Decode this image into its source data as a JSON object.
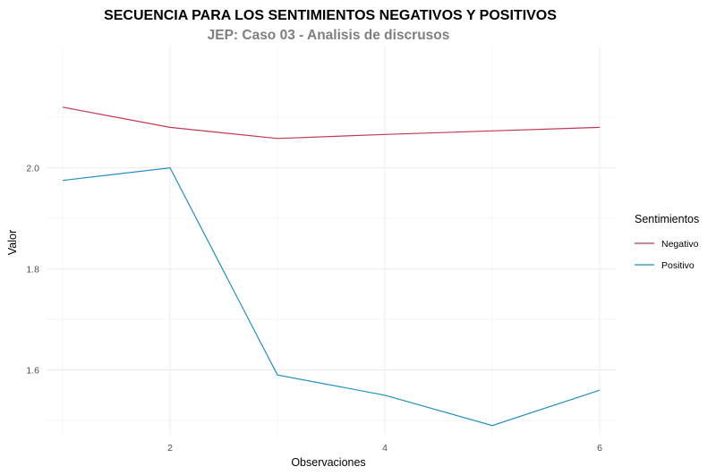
{
  "chart_data": {
    "type": "line",
    "title": "SECUENCIA PARA LOS SENTIMIENTOS NEGATIVOS Y POSITIVOS",
    "subtitle": "JEP: Caso 03 - Analisis de discrusos",
    "xlabel": "Observaciones",
    "ylabel": "Valor",
    "x": [
      1,
      2,
      3,
      4,
      5,
      6
    ],
    "xlim": [
      0.85,
      6.15
    ],
    "ylim": [
      1.47,
      2.24
    ],
    "xticks": [
      2,
      4,
      6
    ],
    "yticks": [
      1.6,
      1.8,
      2.0
    ],
    "ytick_labels": [
      "1.6",
      "1.8",
      "2.0"
    ],
    "xtick_labels": [
      "2",
      "4",
      "6"
    ],
    "grid": true,
    "legend": {
      "title": "Sentimientos",
      "placement": "right"
    },
    "series": [
      {
        "name": "Negativo",
        "color": "#c4384f",
        "values": [
          2.12,
          2.08,
          2.058,
          2.066,
          2.073,
          2.08
        ]
      },
      {
        "name": "Positivo",
        "color": "#1f8fc4",
        "values": [
          1.975,
          2.0,
          1.59,
          1.55,
          1.49,
          1.56
        ]
      }
    ]
  }
}
